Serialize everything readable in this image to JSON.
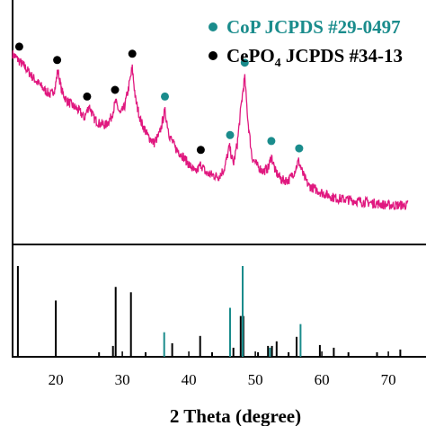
{
  "chart_data": {
    "type": "line",
    "xlabel": "2 Theta (degree)",
    "xlim": [
      13.5,
      73
    ],
    "x_ticks": [
      20,
      30,
      40,
      50,
      60,
      70
    ],
    "tick_labels": [
      "20",
      "30",
      "40",
      "50",
      "60",
      "70"
    ],
    "grid": false,
    "legend": {
      "placement": "top-right",
      "entries": [
        {
          "name": "CoP JCPDS #29-0497",
          "color": "#1a8c8c",
          "marker": "circle"
        },
        {
          "name": "CePO4 JCPDS #34-13",
          "name_main": "CePO",
          "name_sub": "4",
          "name_tail": " JCPDS #34-13",
          "color": "#000000",
          "marker": "circle"
        }
      ]
    },
    "upper_panel": {
      "series": [
        {
          "color": "#e0187f",
          "x": [
            13.5,
            14.5,
            15.5,
            16.5,
            17.5,
            18.5,
            19.3,
            19.9,
            20.3,
            20.9,
            21.6,
            22.5,
            23.5,
            24.3,
            25.0,
            25.7,
            26.5,
            27.5,
            28.3,
            29.0,
            29.7,
            30.3,
            30.9,
            31.5,
            32.0,
            32.8,
            33.8,
            34.8,
            35.6,
            36.4,
            37.1,
            38.0,
            39.0,
            40.0,
            41.0,
            41.8,
            42.6,
            43.5,
            44.5,
            45.4,
            46.1,
            46.7,
            47.3,
            47.9,
            48.4,
            48.9,
            49.5,
            50.3,
            51.2,
            52.0,
            52.4,
            53.0,
            54.0,
            55.0,
            55.9,
            56.5,
            57.2,
            58.0,
            59.0,
            60.0,
            62.0,
            64.0,
            66.0,
            68.0,
            70.0,
            72.0,
            73.0
          ],
          "y": [
            100,
            96,
            92,
            87,
            83,
            79,
            77,
            81,
            91,
            79,
            74,
            71,
            68,
            64,
            71,
            64,
            61,
            60,
            64,
            73,
            66,
            70,
            80,
            92,
            74,
            62,
            54,
            50,
            55,
            68,
            54,
            47,
            43,
            38,
            33,
            38,
            33,
            32,
            31,
            36,
            48,
            38,
            50,
            72,
            87,
            62,
            42,
            37,
            34,
            36,
            43,
            34,
            29,
            29,
            34,
            40,
            32,
            26,
            24,
            22,
            19,
            18,
            17,
            16,
            15,
            15,
            15
          ]
        }
      ],
      "markers": [
        {
          "phase": "CePO4",
          "x": [
            14.5,
            20.2,
            24.7,
            28.9,
            31.5,
            41.8
          ]
        },
        {
          "phase": "CoP",
          "x": [
            36.4,
            46.2,
            48.4,
            52.4,
            56.6
          ]
        }
      ]
    },
    "lower_panel": {
      "type": "reference-lines",
      "series": [
        {
          "name": "CePO4",
          "color": "#000000",
          "x": [
            14.3,
            20.0,
            26.5,
            28.6,
            29.0,
            31.3,
            33.5,
            37.5,
            41.7,
            43.5,
            46.7,
            47.8,
            48.2,
            50.4,
            51.9,
            52.5,
            53.2,
            55.0,
            56.2,
            59.7,
            61.8,
            64.0,
            68.3,
            71.8
          ],
          "y": [
            100,
            62,
            5,
            12,
            77,
            71,
            5,
            15,
            23,
            5,
            10,
            45,
            45,
            5,
            12,
            12,
            17,
            5,
            22,
            13,
            10,
            5,
            5,
            8
          ]
        },
        {
          "name": "CoP",
          "color": "#1a8c8c",
          "x": [
            36.3,
            46.2,
            48.1,
            52.2,
            56.8
          ],
          "y": [
            27,
            54,
            100,
            10,
            36
          ]
        }
      ]
    }
  }
}
